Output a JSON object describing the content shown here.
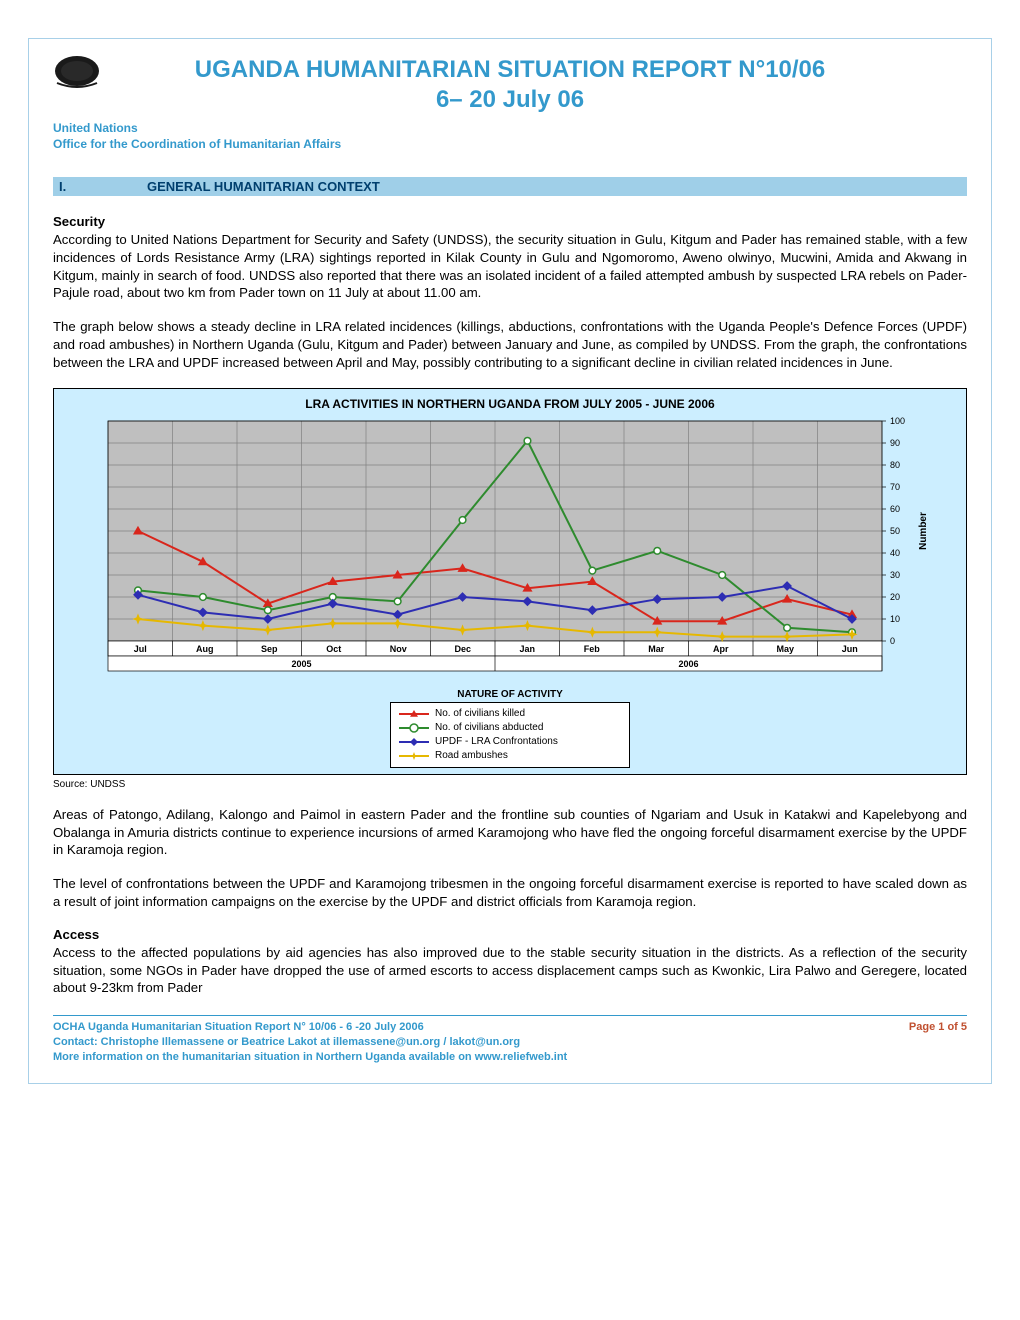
{
  "header": {
    "title_line1": "UGANDA HUMANITARIAN SITUATION REPORT N°10/06",
    "title_line2": "6– 20 July 06",
    "org_line1": "United Nations",
    "org_line2": "Office for the Coordination of Humanitarian Affairs"
  },
  "section1": {
    "num": "I.",
    "title": "GENERAL HUMANITARIAN CONTEXT"
  },
  "security_hdr": "Security",
  "security_p1": "According to United Nations Department for Security and Safety (UNDSS), the security situation in Gulu, Kitgum and Pader has remained stable, with a few incidences of Lords Resistance Army (LRA) sightings reported in Kilak County  in Gulu and Ngomoromo, Aweno olwinyo, Mucwini, Amida and Akwang  in Kitgum,  mainly in search of food. UNDSS also reported that there was an isolated incident of a failed attempted ambush by suspected LRA rebels on Pader- Pajule road, about two km from Pader town on 11 July at about 11.00 am.",
  "security_p2": "The graph below shows a steady decline in LRA related incidences (killings, abductions, confrontations with the Uganda People's Defence Forces (UPDF) and road ambushes) in Northern Uganda (Gulu, Kitgum and Pader) between January and June,  as compiled by UNDSS. From the graph, the confrontations between the LRA and UPDF increased between April and May, possibly contributing to a significant decline in civilian related incidences in June.",
  "chart": {
    "title": "LRA ACTIVITIES IN NORTHERN UGANDA FROM JULY 2005 - JUNE 2006",
    "type": "line",
    "background_color": "#cceeff",
    "plot_background": "#bfbfbf",
    "gridline_color": "#808080",
    "axis_color": "#808080",
    "ylim": [
      0,
      100
    ],
    "ytick_step": 10,
    "ylabel": "Number",
    "xlabel_title": "NATURE OF ACTIVITY",
    "categories": [
      "Jul",
      "Aug",
      "Sep",
      "Oct",
      "Nov",
      "Dec",
      "Jan",
      "Feb",
      "Mar",
      "Apr",
      "May",
      "Jun"
    ],
    "year_groups": [
      {
        "label": "2005",
        "span": [
          0,
          5
        ]
      },
      {
        "label": "2006",
        "span": [
          6,
          11
        ]
      }
    ],
    "series": [
      {
        "name": "No. of civilians killed",
        "color": "#d9261c",
        "marker": "triangle",
        "values": [
          50,
          36,
          17,
          27,
          30,
          33,
          24,
          27,
          9,
          9,
          19,
          12
        ]
      },
      {
        "name": "No. of civilians abducted",
        "color": "#2e8b2e",
        "marker": "circle",
        "values": [
          23,
          20,
          14,
          20,
          18,
          55,
          91,
          32,
          41,
          30,
          6,
          4
        ]
      },
      {
        "name": "UPDF - LRA Confrontations",
        "color": "#2d2db3",
        "marker": "diamond",
        "values": [
          21,
          13,
          10,
          17,
          12,
          20,
          18,
          14,
          19,
          20,
          25,
          10
        ]
      },
      {
        "name": "Road ambushes",
        "color": "#e6b800",
        "marker": "star",
        "values": [
          10,
          7,
          5,
          8,
          8,
          5,
          7,
          4,
          4,
          2,
          2,
          3
        ]
      }
    ],
    "line_width": 2,
    "marker_size": 6,
    "title_fontsize": 12,
    "tick_fontsize": 9
  },
  "source_line": "Source: UNDSS",
  "areas_p": "Areas of Patongo, Adilang, Kalongo and Paimol in eastern Pader and the frontline sub counties of Ngariam and Usuk in Katakwi and Kapelebyong and Obalanga in Amuria districts continue to experience incursions of armed Karamojong who have fled the ongoing forceful disarmament exercise by the UPDF in Karamoja region.",
  "confront_p": "The level of confrontations between the UPDF and Karamojong tribesmen in the ongoing forceful disarmament exercise is reported to have scaled down as a result of joint information campaigns on the exercise by the UPDF and district officials from Karamoja region.",
  "access_hdr": "Access",
  "access_p": "Access to the affected populations by aid agencies has also improved due to the stable security situation in the districts. As a reflection of the security situation, some NGOs in Pader have dropped the use of armed escorts to access displacement camps such as Kwonkic, Lira Palwo and Geregere, located about 9-23km from Pader",
  "footer": {
    "line1": "OCHA Uganda Humanitarian Situation Report N° 10/06 - 6 -20 July 2006",
    "page": "Page 1 of 5",
    "line2": "Contact: Christophe Illemassene or Beatrice Lakot at illemassene@un.org / lakot@un.org",
    "line3": "More information on the humanitarian situation in Northern Uganda available on www.reliefweb.int"
  }
}
